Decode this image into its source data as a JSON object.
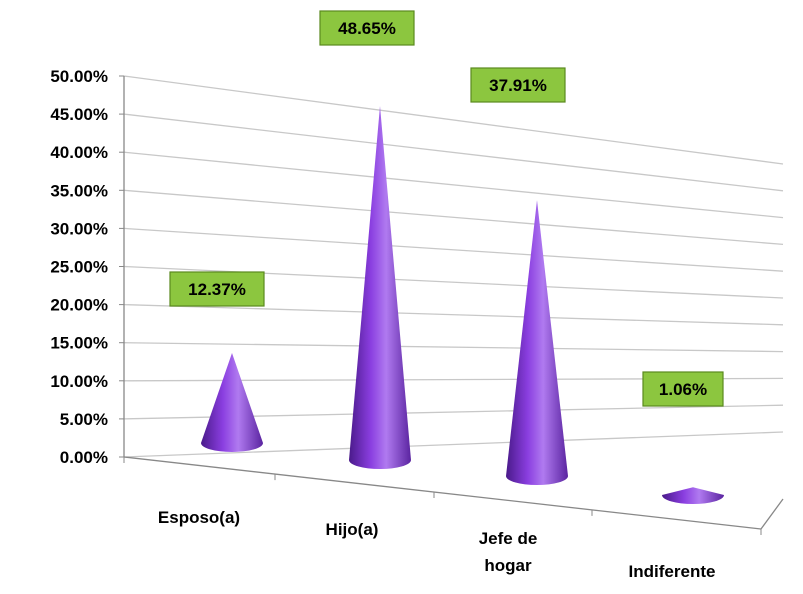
{
  "chart_data": {
    "type": "bar",
    "subtype": "3d-cone",
    "title": "",
    "xlabel": "",
    "ylabel": "",
    "categories": [
      {
        "lines": [
          "Esposo(a)"
        ]
      },
      {
        "lines": [
          "Hijo(a)"
        ]
      },
      {
        "lines": [
          "Jefe de",
          "hogar"
        ]
      },
      {
        "lines": [
          "Indiferente"
        ]
      }
    ],
    "values": [
      12.37,
      48.65,
      37.91,
      1.06
    ],
    "data_labels": [
      "12.37%",
      "48.65%",
      "37.91%",
      "1.06%"
    ],
    "ylim": [
      0,
      50
    ],
    "y_ticks": [
      "0.00%",
      "5.00%",
      "10.00%",
      "15.00%",
      "20.00%",
      "25.00%",
      "30.00%",
      "35.00%",
      "40.00%",
      "45.00%",
      "50.00%"
    ],
    "grid": true,
    "legend": "none",
    "colors": {
      "cone_dark": "#4a1a8a",
      "cone_mid": "#8a3ee0",
      "cone_light": "#c89af5",
      "label_bg": "#8cc63f",
      "label_border": "#5a8a1e",
      "grid": "#c8c8c8",
      "axis": "#888888"
    }
  }
}
